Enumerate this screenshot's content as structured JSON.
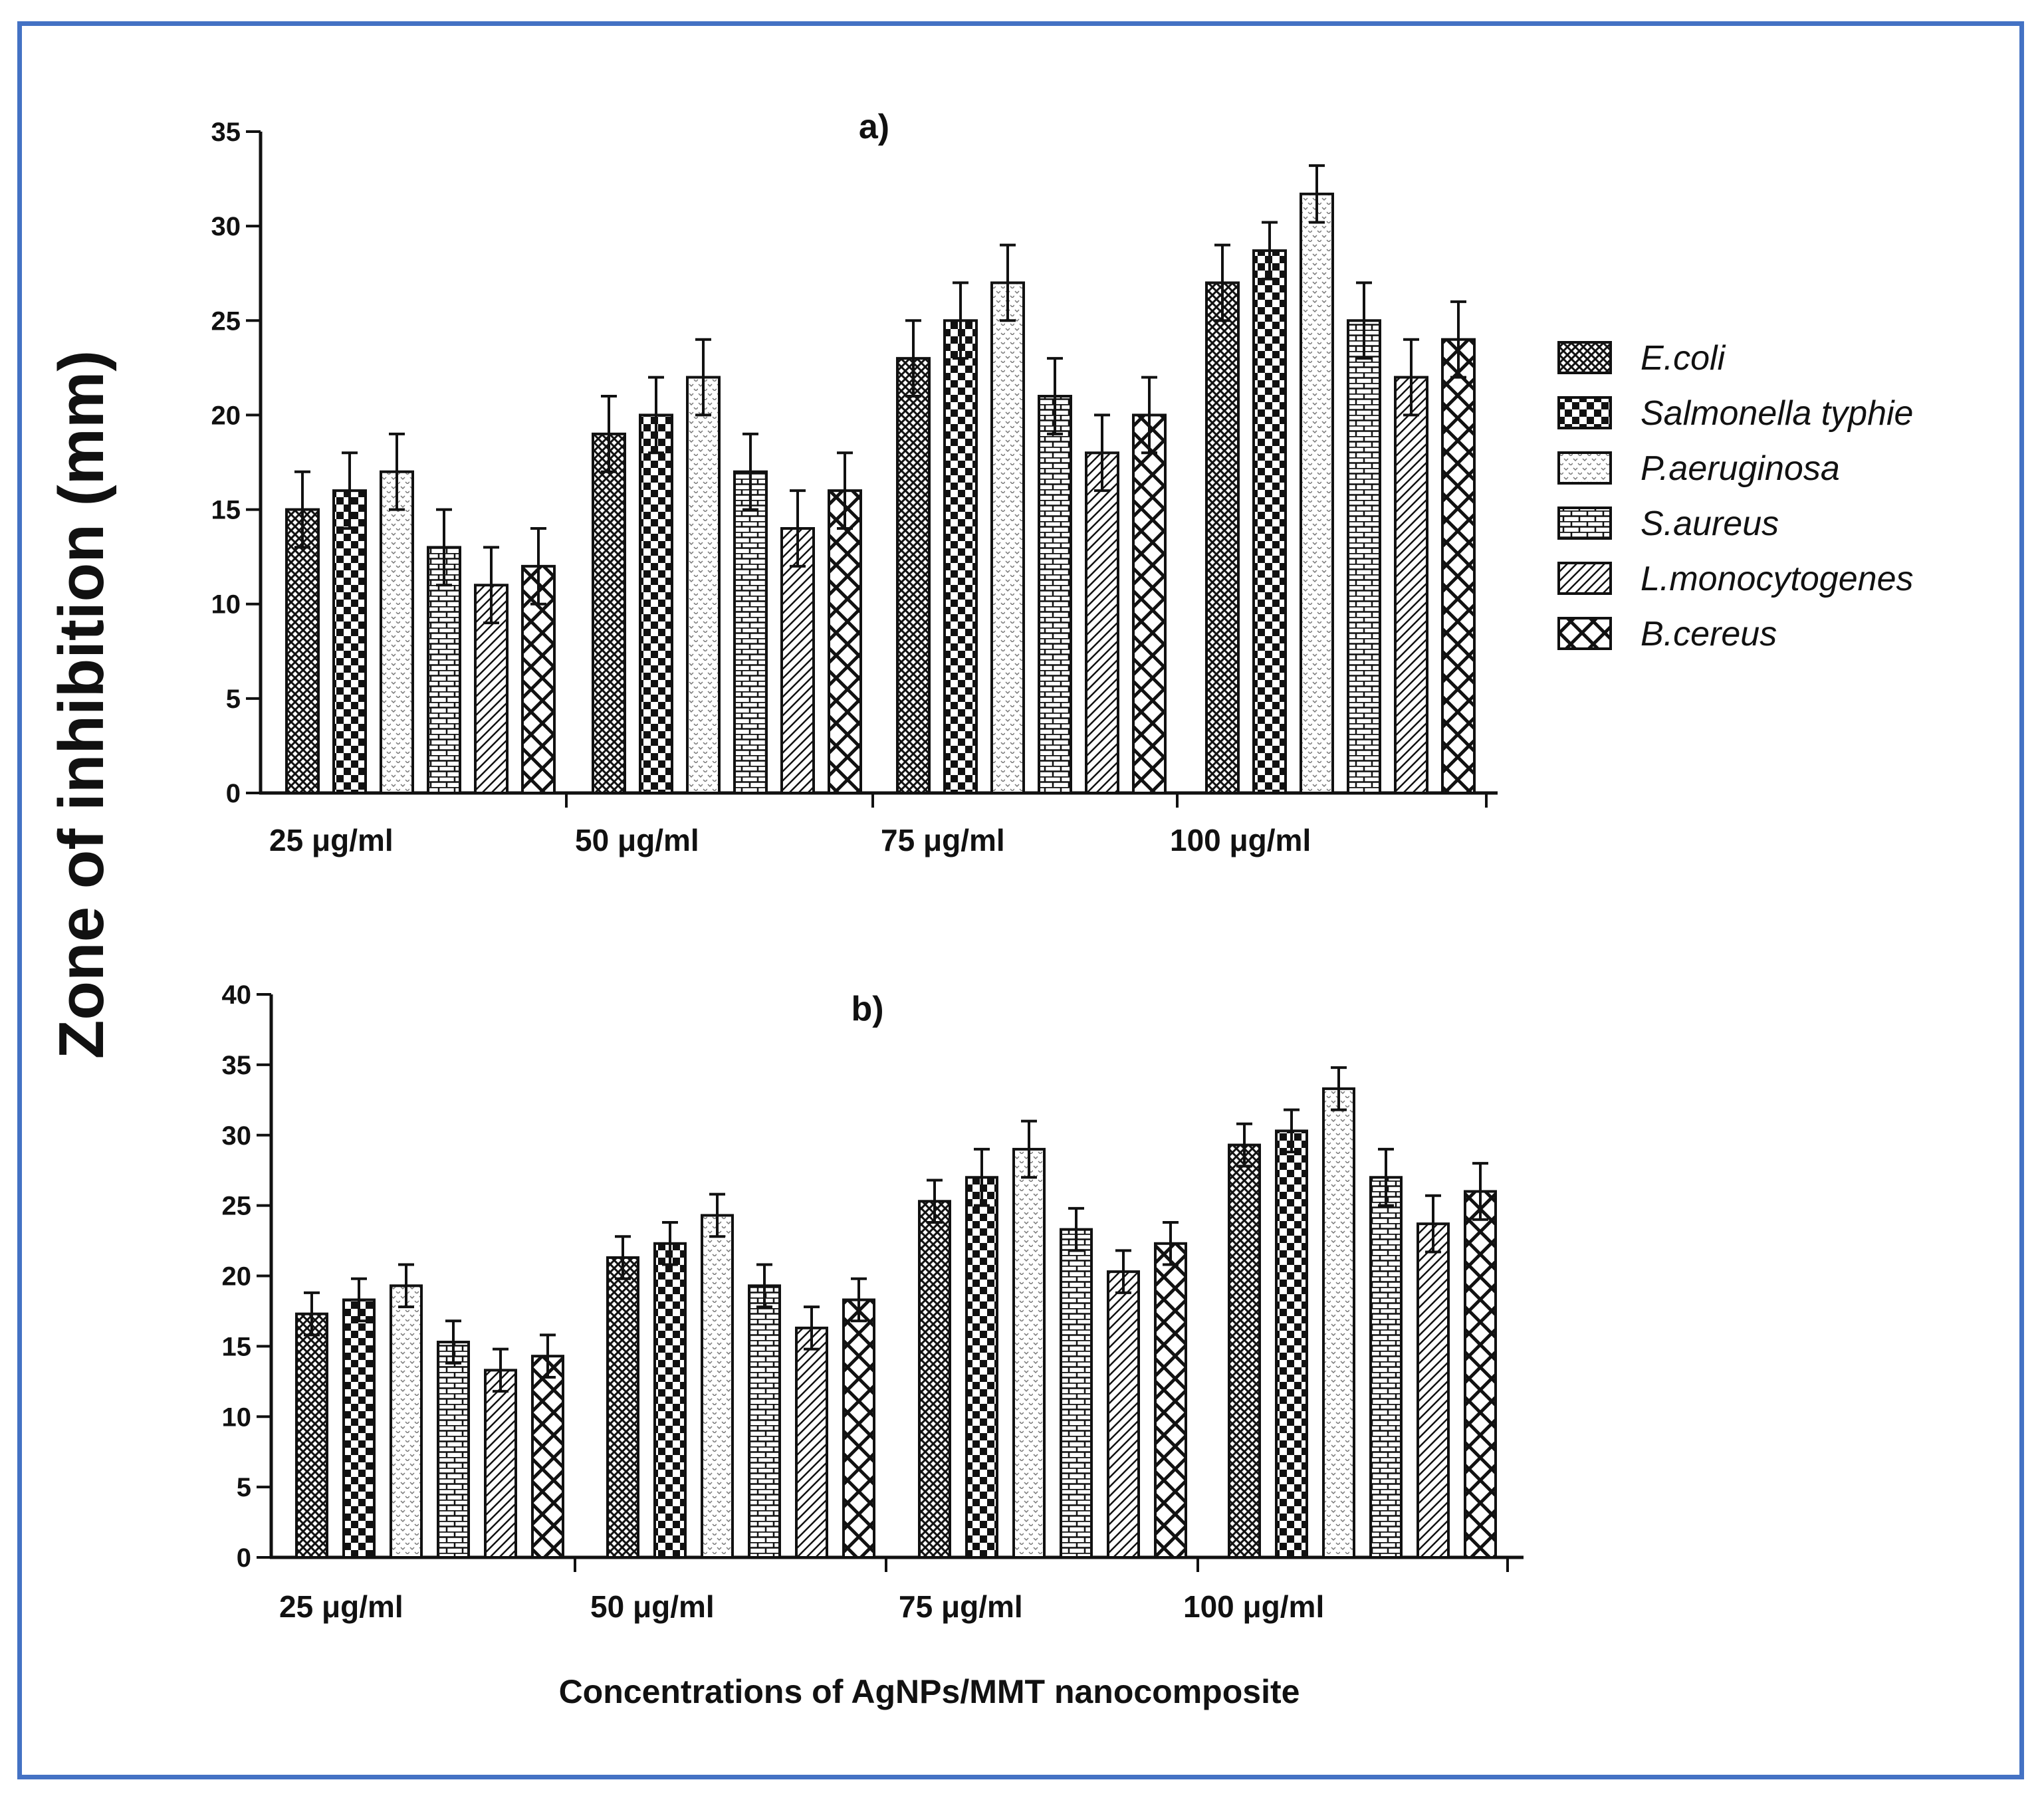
{
  "chart_data": [
    {
      "type": "bar",
      "title": "a)",
      "categories": [
        "25 μg/ml",
        "50 μg/ml",
        "75 μg/ml",
        "100 μg/ml"
      ],
      "ylim": [
        0,
        35
      ],
      "yticks": [
        0,
        5,
        10,
        15,
        20,
        25,
        30,
        35
      ],
      "series": [
        {
          "name": "E.coli",
          "values": [
            15,
            19,
            23,
            27
          ],
          "errors": [
            2,
            2,
            2,
            2
          ]
        },
        {
          "name": "Salmonella typhie",
          "values": [
            16,
            20,
            25,
            28.7
          ],
          "errors": [
            2,
            2,
            2,
            1.5
          ]
        },
        {
          "name": "P.aeruginosa",
          "values": [
            17,
            22,
            27,
            31.7
          ],
          "errors": [
            2,
            2,
            2,
            1.5
          ]
        },
        {
          "name": "S.aureus",
          "values": [
            13,
            17,
            21,
            25
          ],
          "errors": [
            2,
            2,
            2,
            2
          ]
        },
        {
          "name": "L.monocytogenes",
          "values": [
            11,
            14,
            18,
            22
          ],
          "errors": [
            2,
            2,
            2,
            2
          ]
        },
        {
          "name": "B.cereus",
          "values": [
            12,
            16,
            20,
            24
          ],
          "errors": [
            2,
            2,
            2,
            2
          ]
        }
      ]
    },
    {
      "type": "bar",
      "title": "b)",
      "categories": [
        "25 μg/ml",
        "50 μg/ml",
        "75 μg/ml",
        "100  μg/ml"
      ],
      "ylim": [
        0,
        40
      ],
      "yticks": [
        0,
        5,
        10,
        15,
        20,
        25,
        30,
        35,
        40
      ],
      "series": [
        {
          "name": "E.coli",
          "values": [
            17.3,
            21.3,
            25.3,
            29.3
          ],
          "errors": [
            1.5,
            1.5,
            1.5,
            1.5
          ]
        },
        {
          "name": "Salmonella typhie",
          "values": [
            18.3,
            22.3,
            27,
            30.3
          ],
          "errors": [
            1.5,
            1.5,
            2,
            1.5
          ]
        },
        {
          "name": "P.aeruginosa",
          "values": [
            19.3,
            24.3,
            29,
            33.3
          ],
          "errors": [
            1.5,
            1.5,
            2,
            1.5
          ]
        },
        {
          "name": "S.aureus",
          "values": [
            15.3,
            19.3,
            23.3,
            27
          ],
          "errors": [
            1.5,
            1.5,
            1.5,
            2
          ]
        },
        {
          "name": "L.monocytogenes",
          "values": [
            13.3,
            16.3,
            20.3,
            23.7
          ],
          "errors": [
            1.5,
            1.5,
            1.5,
            2
          ]
        },
        {
          "name": "B.cereus",
          "values": [
            14.3,
            18.3,
            22.3,
            26
          ],
          "errors": [
            1.5,
            1.5,
            1.5,
            2
          ]
        }
      ]
    }
  ],
  "legend": [
    "E.coli",
    "Salmonella typhie",
    "P.aeruginosa",
    "S.aureus",
    "L.monocytogenes",
    "B.cereus"
  ],
  "ylabel": "Zone of inhibition (mm)",
  "xlabel": "Concentrations of AgNPs/MMT nanocomposite",
  "colors": {
    "frame": "#4472c4",
    "ink": "#111111"
  }
}
